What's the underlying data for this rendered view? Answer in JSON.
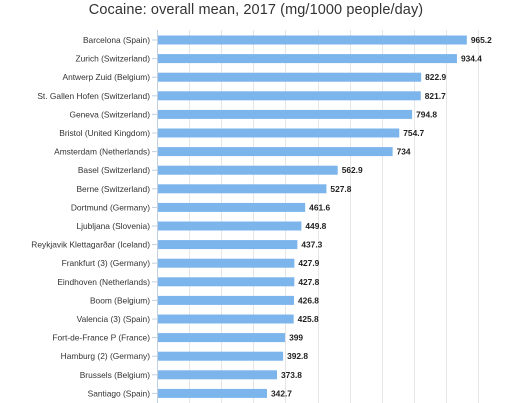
{
  "chart_data": {
    "type": "bar",
    "orientation": "horizontal",
    "title": "Cocaine: overall mean, 2017 (mg/1000 people/day)",
    "xlabel": "",
    "ylabel": "",
    "xlim": [
      0,
      1000
    ],
    "grid": true,
    "bar_color": "#7cb5ec",
    "gridline_color": "#e6e6e6",
    "categories": [
      "Barcelona (Spain)",
      "Zurich (Switzerland)",
      "Antwerp Zuid (Belgium)",
      "St. Gallen Hofen (Switzerland)",
      "Geneva (Switzerland)",
      "Bristol (United Kingdom)",
      "Amsterdam (Netherlands)",
      "Basel (Switzerland)",
      "Berne (Switzerland)",
      "Dortmund (Germany)",
      "Ljubljana (Slovenia)",
      "Reykjavik Klettagarðar (Iceland)",
      "Frankfurt (3) (Germany)",
      "Eindhoven (Netherlands)",
      "Boom (Belgium)",
      "Valencia (3) (Spain)",
      "Fort-de-France P (France)",
      "Hamburg (2) (Germany)",
      "Brussels (Belgium)",
      "Santiago (Spain)"
    ],
    "values": [
      965.2,
      934.4,
      822.9,
      821.7,
      794.8,
      754.7,
      734,
      562.9,
      527.8,
      461.6,
      449.8,
      437.3,
      427.9,
      427.8,
      426.8,
      425.8,
      399,
      392.8,
      373.8,
      342.7
    ],
    "value_labels": [
      "965.2",
      "934.4",
      "822.9",
      "821.7",
      "794.8",
      "754.7",
      "734",
      "562.9",
      "527.8",
      "461.6",
      "449.8",
      "437.3",
      "427.9",
      "427.8",
      "426.8",
      "425.8",
      "399",
      "392.8",
      "373.8",
      "342.7"
    ]
  }
}
